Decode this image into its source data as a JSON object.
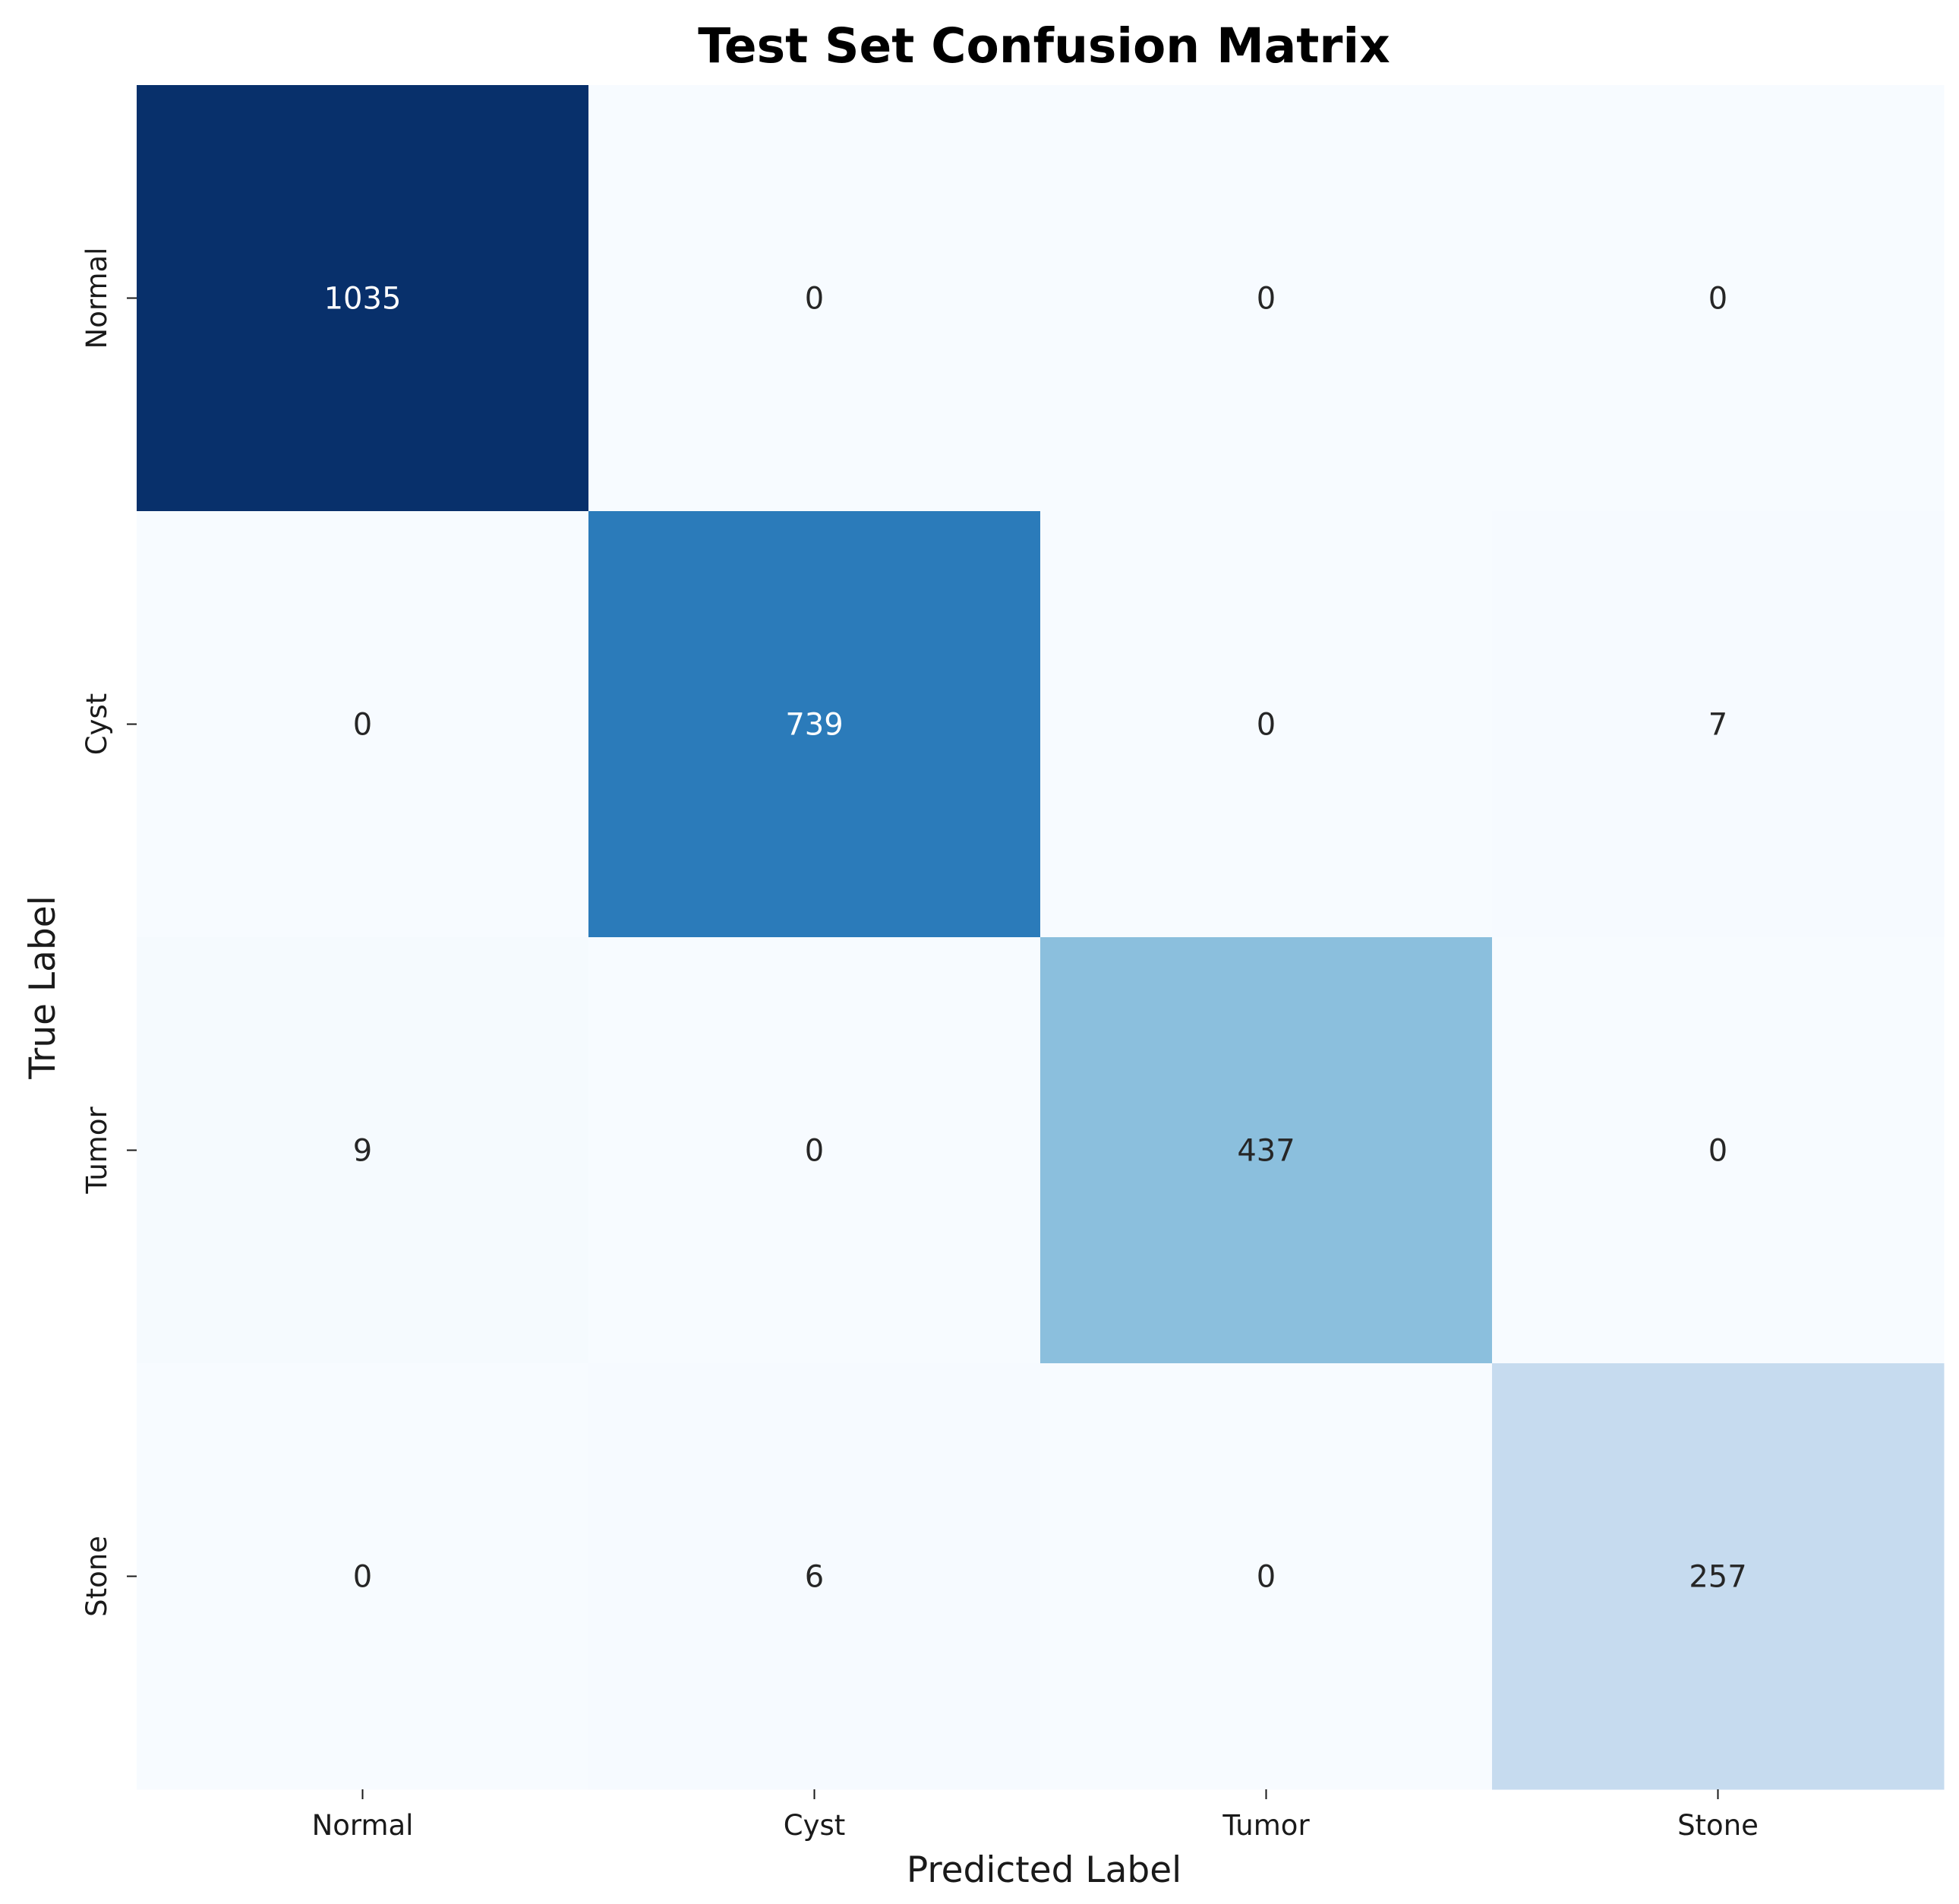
{
  "chart_data": {
    "type": "heatmap",
    "title": "Test Set Confusion Matrix",
    "xlabel": "Predicted Label",
    "ylabel": "True Label",
    "x_categories": [
      "Normal",
      "Cyst",
      "Tumor",
      "Stone"
    ],
    "y_categories": [
      "Normal",
      "Cyst",
      "Tumor",
      "Stone"
    ],
    "values": [
      [
        1035,
        0,
        0,
        0
      ],
      [
        0,
        739,
        0,
        7
      ],
      [
        9,
        0,
        437,
        0
      ],
      [
        0,
        6,
        0,
        257
      ]
    ],
    "colormap": "Blues",
    "color_low": "#f7fbff",
    "color_high": "#08306b",
    "vmin": 0,
    "vmax": 1035,
    "colorbar": false,
    "annotated": true
  }
}
